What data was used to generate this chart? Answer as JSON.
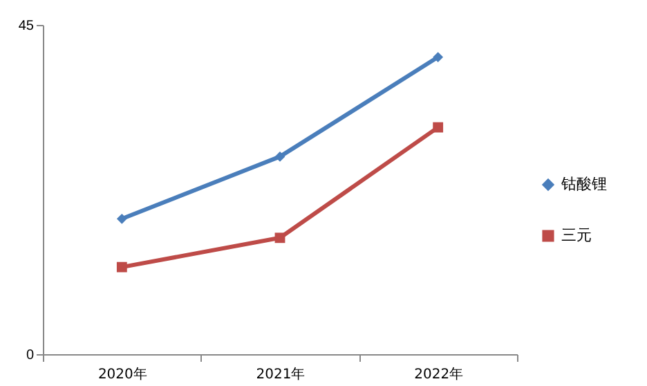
{
  "chart_data": {
    "type": "line",
    "categories": [
      "2020年",
      "2021年",
      "2022年"
    ],
    "series": [
      {
        "name": "钴酸锂",
        "color": "#4a7ebb",
        "marker": "diamond",
        "values": [
          18.5,
          27.0,
          40.6
        ]
      },
      {
        "name": "三元",
        "color": "#be4b48",
        "marker": "square",
        "values": [
          11.9,
          15.9,
          31.0
        ]
      }
    ],
    "ylim": [
      0,
      45
    ],
    "yticks": [
      0,
      45
    ],
    "grid": false,
    "legend": "right",
    "line_style": "solid"
  }
}
